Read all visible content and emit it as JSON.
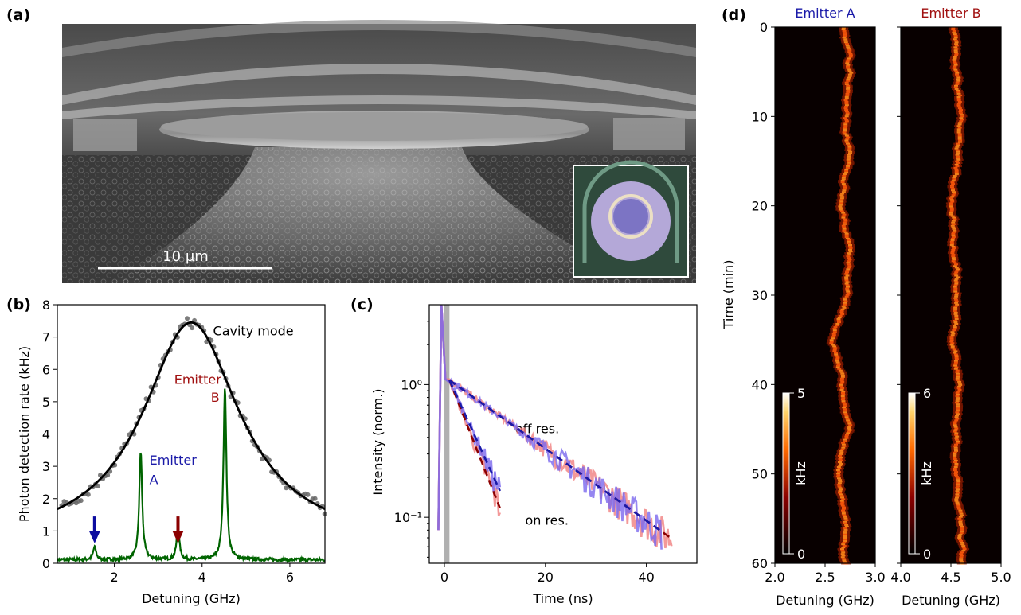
{
  "panels": {
    "a": "(a)",
    "b": "(b)",
    "c": "(c)",
    "d": "(d)"
  },
  "sem": {
    "scale_bar_label": "10 µm",
    "colors": {
      "inset_disk": "#8a86c8",
      "inset_ring": "#e9e0c8",
      "inset_border": "#3f6a55"
    }
  },
  "chart_data": [
    {
      "panel": "b",
      "type": "line",
      "xlabel": "Detuning (GHz)",
      "ylabel": "Photon detection rate (kHz)",
      "xlim": [
        0.7,
        6.8
      ],
      "ylim": [
        0,
        8
      ],
      "xticks": [
        2,
        4,
        6
      ],
      "yticks": [
        0,
        1,
        2,
        3,
        4,
        5,
        6,
        7,
        8
      ],
      "annotations": {
        "cavity": "Cavity mode",
        "emitter_b_line1": "Emitter",
        "emitter_b_line2": "B",
        "emitter_a_line1": "Emitter",
        "emitter_a_line2": "A"
      },
      "cavity_fit": {
        "type": "lorentzian",
        "x0": 3.75,
        "fwhm": 2.7,
        "amplitude": 6.9,
        "offset": 0.55
      },
      "cavity_points_approx": [
        [
          0.8,
          2.5
        ],
        [
          1.0,
          2.7
        ],
        [
          1.4,
          3.0
        ],
        [
          1.8,
          3.4
        ],
        [
          2.2,
          3.9
        ],
        [
          2.6,
          4.7
        ],
        [
          3.0,
          5.9
        ],
        [
          3.4,
          7.0
        ],
        [
          3.7,
          7.5
        ],
        [
          4.0,
          7.3
        ],
        [
          4.4,
          6.4
        ],
        [
          4.8,
          5.1
        ],
        [
          5.2,
          4.0
        ],
        [
          5.6,
          3.0
        ],
        [
          6.0,
          2.4
        ],
        [
          6.4,
          2.1
        ],
        [
          6.8,
          1.8
        ]
      ],
      "emission_peaks": [
        {
          "x": 1.55,
          "height": 0.4
        },
        {
          "x": 2.6,
          "height": 3.35
        },
        {
          "x": 3.45,
          "height": 0.95
        },
        {
          "x": 4.52,
          "height": 5.35
        }
      ],
      "arrows": [
        {
          "x": 1.55,
          "color": "#0d0da0"
        },
        {
          "x": 3.45,
          "color": "#8b0000"
        }
      ],
      "colors": {
        "fit": "#000000",
        "points": "#666666",
        "spectrum": "#006400",
        "emitter_a": "#1a1aa8",
        "emitter_b": "#a01010"
      }
    },
    {
      "panel": "c",
      "type": "line",
      "xlabel": "Time (ns)",
      "ylabel": "Intensity (norm.)",
      "yscale": "log",
      "xlim": [
        -3,
        50
      ],
      "ylim": [
        0.045,
        4.0
      ],
      "xticks": [
        0,
        20,
        40
      ],
      "yticks": [
        0.1,
        1
      ],
      "yticklabels": [
        "10⁻¹",
        "10⁰"
      ],
      "annotations": {
        "off": "off res.",
        "on": "on res."
      },
      "series": [
        {
          "decay_start": 1.0,
          "tau": 16.0,
          "end": 45,
          "color_data": "#f08080",
          "color_fit": "#8b0000"
        },
        {
          "decay_start": 1.0,
          "tau": 16.0,
          "end": 43,
          "color_data": "#7b68ee",
          "color_fit": "#1a1aa8"
        },
        {
          "decay_start": 1.0,
          "tau": 4.5,
          "end": 11,
          "color_data": "#f08080",
          "color_fit": "#8b0000"
        },
        {
          "decay_start": 1.0,
          "tau": 5.2,
          "end": 11,
          "color_data": "#7b68ee",
          "color_fit": "#1a1aa8"
        }
      ],
      "shaded_region": [
        0,
        1
      ],
      "shade_color": "#b0b0b0"
    },
    {
      "panel": "d",
      "type": "heatmap",
      "ylabel": "Time (min)",
      "ylim": [
        0,
        60
      ],
      "yticks": [
        0,
        10,
        20,
        30,
        40,
        50,
        60
      ],
      "maps": [
        {
          "title": "Emitter A",
          "title_color": "#1a1aa8",
          "xlabel": "Detuning (GHz)",
          "xlim": [
            2.0,
            3.0
          ],
          "xticks": [
            "2.0",
            "2.5",
            "3.0"
          ],
          "center_track_approx": [
            [
              0,
              2.68
            ],
            [
              5,
              2.75
            ],
            [
              10,
              2.7
            ],
            [
              15,
              2.73
            ],
            [
              20,
              2.65
            ],
            [
              25,
              2.75
            ],
            [
              30,
              2.7
            ],
            [
              35,
              2.58
            ],
            [
              40,
              2.68
            ],
            [
              45,
              2.72
            ],
            [
              50,
              2.62
            ],
            [
              55,
              2.68
            ],
            [
              60,
              2.7
            ]
          ],
          "colorbar_max": "5",
          "colorbar_min": "0",
          "colorbar_label": "kHz"
        },
        {
          "title": "Emitter B",
          "title_color": "#a01010",
          "xlabel": "Detuning (GHz)",
          "xlim": [
            4.0,
            5.0
          ],
          "xticks": [
            "4.0",
            "4.5",
            "5.0"
          ],
          "center_track_approx": [
            [
              0,
              4.52
            ],
            [
              5,
              4.55
            ],
            [
              10,
              4.6
            ],
            [
              15,
              4.55
            ],
            [
              20,
              4.5
            ],
            [
              25,
              4.55
            ],
            [
              30,
              4.58
            ],
            [
              35,
              4.5
            ],
            [
              40,
              4.6
            ],
            [
              45,
              4.55
            ],
            [
              50,
              4.55
            ],
            [
              55,
              4.58
            ],
            [
              60,
              4.6
            ]
          ],
          "colorbar_max": "6",
          "colorbar_min": "0",
          "colorbar_label": "kHz"
        }
      ]
    }
  ]
}
